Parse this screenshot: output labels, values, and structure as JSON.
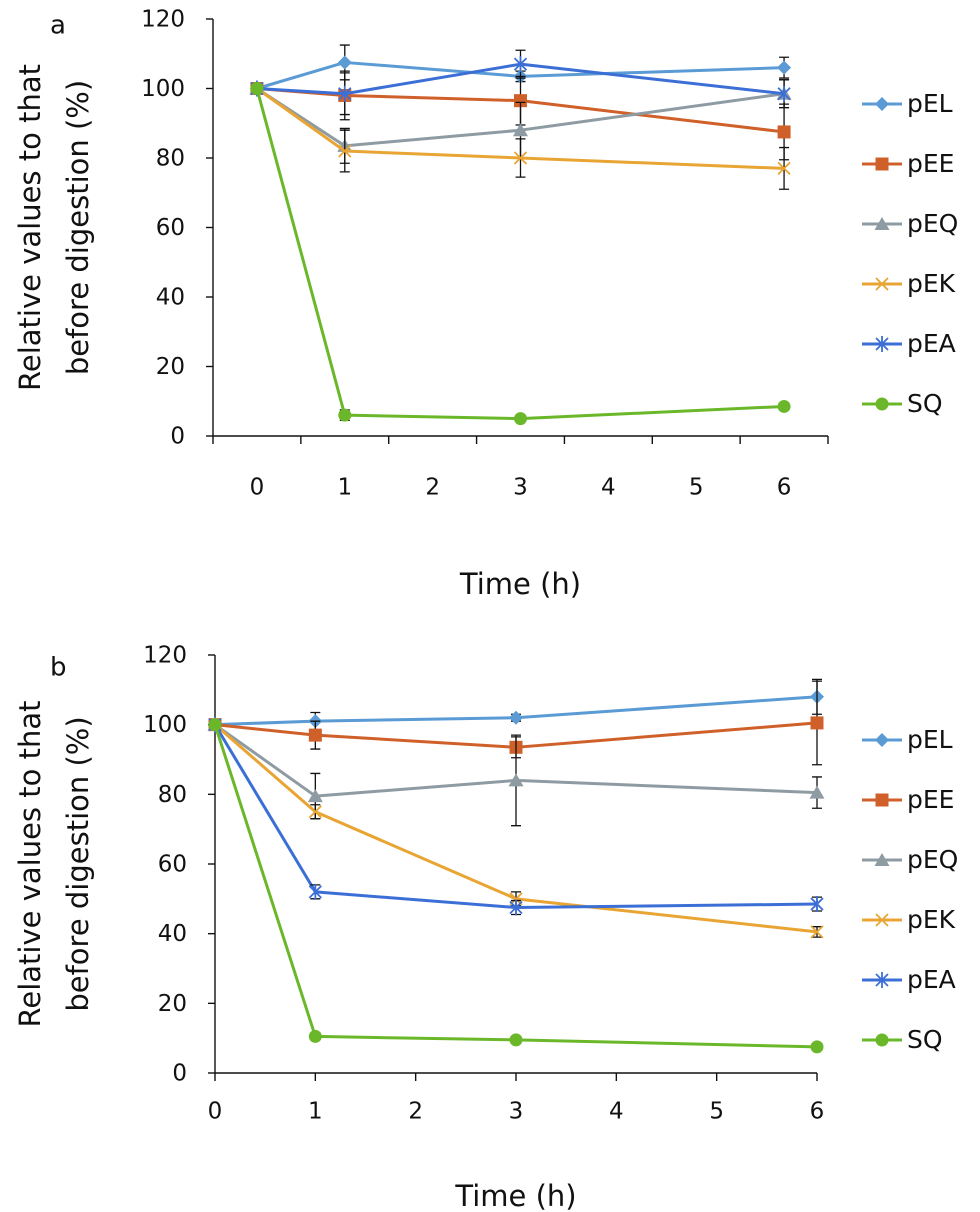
{
  "chart_data": [
    {
      "panel": "a",
      "type": "line",
      "x_axis_kind": "categorical",
      "categories": [
        "0",
        "1",
        "2",
        "3",
        "4",
        "5",
        "6"
      ],
      "xlabel": "Time (h)",
      "ylabel_lines": [
        "Relative values to that",
        "before digestion (%)"
      ],
      "yticks": [
        0,
        20,
        40,
        60,
        80,
        100,
        120
      ],
      "ylim": [
        0,
        120
      ],
      "grid": false,
      "legend_position": "right",
      "series": [
        {
          "name": "pEL",
          "color": "#5b9bd5",
          "marker": "diamond",
          "points": [
            {
              "x": "0",
              "y": 100
            },
            {
              "x": "1",
              "y": 107.5,
              "err": 5
            },
            {
              "x": "3",
              "y": 103.5,
              "err": 1.5
            },
            {
              "x": "6",
              "y": 106,
              "err": 3
            }
          ]
        },
        {
          "name": "pEE",
          "color": "#d0602a",
          "marker": "square",
          "points": [
            {
              "x": "0",
              "y": 100
            },
            {
              "x": "1",
              "y": 98,
              "err": 7
            },
            {
              "x": "3",
              "y": 96.5,
              "err": 7
            },
            {
              "x": "6",
              "y": 87.5,
              "err": 8
            }
          ]
        },
        {
          "name": "pEQ",
          "color": "#8e9ba3",
          "marker": "triangle",
          "points": [
            {
              "x": "0",
              "y": 100
            },
            {
              "x": "1",
              "y": 83.5,
              "err": 5
            },
            {
              "x": "3",
              "y": 88,
              "err": 8
            },
            {
              "x": "6",
              "y": 98.5,
              "err": 4
            }
          ]
        },
        {
          "name": "pEK",
          "color": "#e8a533",
          "marker": "x",
          "points": [
            {
              "x": "0",
              "y": 100
            },
            {
              "x": "1",
              "y": 82,
              "err": 6
            },
            {
              "x": "3",
              "y": 80,
              "err": 5.5
            },
            {
              "x": "6",
              "y": 77,
              "err": 6
            }
          ]
        },
        {
          "name": "pEA",
          "color": "#3c6fd6",
          "marker": "asterisk",
          "points": [
            {
              "x": "0",
              "y": 100
            },
            {
              "x": "1",
              "y": 98.5,
              "err": 6
            },
            {
              "x": "3",
              "y": 107,
              "err": 4
            },
            {
              "x": "6",
              "y": 98.5,
              "err": 4
            }
          ]
        },
        {
          "name": "SQ",
          "color": "#6ab82a",
          "marker": "circle",
          "points": [
            {
              "x": "0",
              "y": 100
            },
            {
              "x": "1",
              "y": 6,
              "err": 1.5
            },
            {
              "x": "3",
              "y": 5
            },
            {
              "x": "6",
              "y": 8.5
            }
          ]
        }
      ]
    },
    {
      "panel": "b",
      "type": "line",
      "x_axis_kind": "numeric",
      "xticks": [
        0,
        1,
        2,
        3,
        4,
        5,
        6
      ],
      "xlim": [
        0,
        6
      ],
      "xlabel": "Time (h)",
      "ylabel_lines": [
        "Relative values to that",
        "before digestion (%)"
      ],
      "yticks": [
        0,
        20,
        40,
        60,
        80,
        100,
        120
      ],
      "ylim": [
        0,
        120
      ],
      "grid": false,
      "legend_position": "right",
      "series": [
        {
          "name": "pEL",
          "color": "#5b9bd5",
          "marker": "diamond",
          "points": [
            {
              "x": 0,
              "y": 100
            },
            {
              "x": 1,
              "y": 101,
              "err": 2.5
            },
            {
              "x": 3,
              "y": 102,
              "err": 1
            },
            {
              "x": 6,
              "y": 108,
              "err": 5
            }
          ]
        },
        {
          "name": "pEE",
          "color": "#d0602a",
          "marker": "square",
          "points": [
            {
              "x": 0,
              "y": 100
            },
            {
              "x": 1,
              "y": 97,
              "err": 4
            },
            {
              "x": 3,
              "y": 93.5,
              "err": 3
            },
            {
              "x": 6,
              "y": 100.5,
              "err": 12
            }
          ]
        },
        {
          "name": "pEQ",
          "color": "#8e9ba3",
          "marker": "triangle",
          "points": [
            {
              "x": 0,
              "y": 100
            },
            {
              "x": 1,
              "y": 79.5,
              "err": 6.5
            },
            {
              "x": 3,
              "y": 84,
              "err": 13
            },
            {
              "x": 6,
              "y": 80.5,
              "err": 4.5
            }
          ]
        },
        {
          "name": "pEK",
          "color": "#e8a533",
          "marker": "x",
          "points": [
            {
              "x": 0,
              "y": 100
            },
            {
              "x": 1,
              "y": 75,
              "err": 2
            },
            {
              "x": 3,
              "y": 50,
              "err": 2
            },
            {
              "x": 6,
              "y": 40.5,
              "err": 1.5
            }
          ]
        },
        {
          "name": "pEA",
          "color": "#3c6fd6",
          "marker": "asterisk",
          "points": [
            {
              "x": 0,
              "y": 100
            },
            {
              "x": 1,
              "y": 52,
              "err": 2
            },
            {
              "x": 3,
              "y": 47.5,
              "err": 2
            },
            {
              "x": 6,
              "y": 48.5,
              "err": 2
            }
          ]
        },
        {
          "name": "SQ",
          "color": "#6ab82a",
          "marker": "circle",
          "points": [
            {
              "x": 0,
              "y": 100
            },
            {
              "x": 1,
              "y": 10.5,
              "err": 1
            },
            {
              "x": 3,
              "y": 9.5
            },
            {
              "x": 6,
              "y": 7.5
            }
          ]
        }
      ]
    }
  ]
}
